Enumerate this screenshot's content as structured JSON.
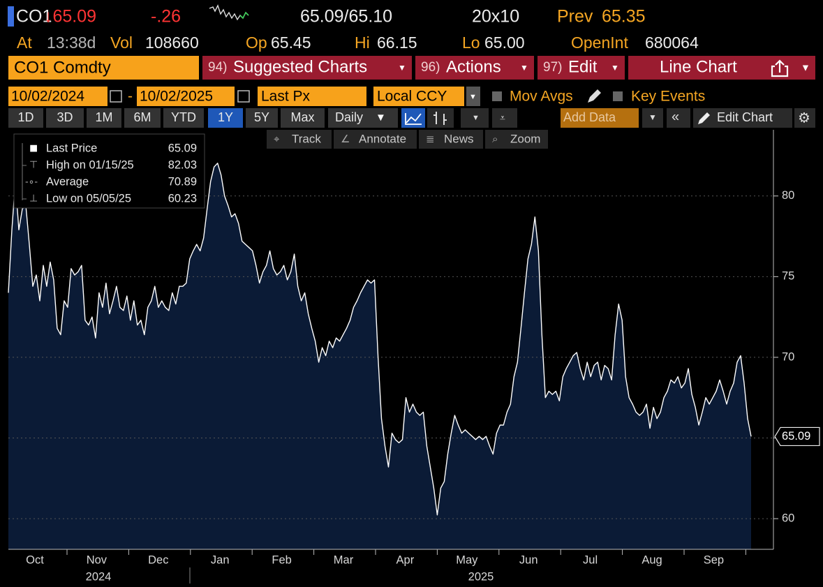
{
  "header": {
    "ticker": "CO1",
    "last": "↓65.09",
    "change": "-.26",
    "bid_ask": "65.09/65.10",
    "size": "20x10",
    "prev_label": "Prev",
    "prev": "65.35"
  },
  "quote": {
    "at_label": "At",
    "time": "13:38d",
    "vol_label": "Vol",
    "vol": "108660",
    "op_label": "Op",
    "op": "65.45",
    "hi_label": "Hi",
    "hi": "66.15",
    "lo_label": "Lo",
    "lo": "65.00",
    "oi_label": "OpenInt",
    "oi": "680064"
  },
  "tabs": {
    "security": "CO1 Comdty",
    "menus": [
      {
        "num": "94)",
        "label": "Suggested Charts"
      },
      {
        "num": "96)",
        "label": "Actions"
      },
      {
        "num": "97)",
        "label": "Edit"
      }
    ],
    "chart_type": "Line Chart"
  },
  "controls": {
    "start": "10/02/2024",
    "separator": "-",
    "end": "10/02/2025",
    "field": "Last Px",
    "currency": "Local CCY",
    "options": [
      "Mov Avgs",
      "Key Events"
    ]
  },
  "periods": [
    "1D",
    "3D",
    "1M",
    "6M",
    "YTD",
    "1Y",
    "5Y",
    "Max"
  ],
  "frequency": "Daily",
  "add_data": "Add Data",
  "edit_chart": "Edit Chart",
  "tools": [
    "Track",
    "Annotate",
    "News",
    "Zoom"
  ],
  "chart_data": {
    "type": "area",
    "color": "#ffffff",
    "fill": "#0b1b36",
    "legend": [
      {
        "label": "Last Price",
        "value": 65.09
      },
      {
        "label": "High on 01/15/25",
        "value": 82.03
      },
      {
        "label": "Average",
        "value": 70.89
      },
      {
        "label": "Low on 05/05/25",
        "value": 60.23
      }
    ],
    "months": [
      "Oct",
      "Nov",
      "Dec",
      "Jan",
      "Feb",
      "Mar",
      "Apr",
      "May",
      "Jun",
      "Jul",
      "Aug",
      "Sep"
    ],
    "years": [
      "2024",
      "2025"
    ],
    "ylim": [
      58.1,
      84.1
    ],
    "yticks": [
      60,
      65,
      70,
      75,
      80
    ],
    "grid": true,
    "values": [
      74.0,
      77.9,
      80.9,
      77.9,
      79.2,
      79.4,
      77.0,
      74.4,
      75.1,
      73.5,
      75.7,
      74.4,
      75.9,
      74.8,
      71.8,
      71.4,
      73.5,
      73.1,
      75.5,
      75.1,
      75.3,
      75.7,
      72.3,
      72.0,
      72.5,
      71.2,
      74.0,
      73.1,
      74.6,
      72.7,
      73.5,
      74.4,
      73.1,
      72.9,
      73.8,
      72.3,
      73.5,
      72.0,
      72.3,
      71.4,
      73.1,
      73.5,
      74.4,
      73.1,
      73.5,
      73.1,
      72.9,
      74.0,
      73.3,
      74.4,
      74.4,
      74.6,
      76.1,
      76.6,
      77.0,
      76.6,
      77.4,
      79.2,
      80.9,
      81.8,
      82.03,
      81.3,
      80.0,
      79.4,
      78.7,
      78.9,
      78.3,
      77.2,
      77.0,
      76.8,
      76.6,
      75.7,
      74.6,
      75.3,
      75.7,
      76.6,
      75.5,
      75.1,
      75.3,
      75.7,
      74.8,
      75.3,
      76.4,
      74.4,
      73.5,
      74.0,
      72.7,
      71.8,
      71.0,
      69.7,
      70.6,
      70.1,
      71.0,
      70.6,
      71.2,
      71.0,
      71.4,
      71.8,
      72.3,
      73.1,
      73.5,
      74.0,
      74.4,
      74.8,
      74.6,
      74.8,
      70.1,
      66.2,
      64.5,
      63.2,
      65.3,
      64.9,
      64.7,
      64.9,
      67.5,
      66.6,
      67.1,
      66.6,
      66.4,
      66.6,
      64.5,
      63.2,
      61.9,
      60.23,
      61.9,
      62.3,
      64.0,
      65.3,
      66.4,
      65.8,
      65.3,
      65.5,
      65.3,
      65.1,
      64.9,
      65.1,
      64.9,
      65.1,
      64.5,
      64.0,
      65.3,
      65.8,
      65.8,
      66.6,
      67.1,
      68.8,
      69.7,
      71.8,
      74.0,
      76.1,
      77.0,
      78.7,
      76.6,
      71.4,
      67.5,
      67.9,
      67.7,
      67.9,
      67.3,
      68.8,
      69.3,
      69.7,
      70.1,
      70.3,
      69.3,
      68.6,
      69.7,
      68.8,
      69.5,
      69.7,
      68.6,
      69.5,
      69.3,
      68.6,
      71.4,
      73.3,
      72.3,
      68.8,
      67.5,
      67.1,
      66.6,
      66.4,
      66.6,
      67.1,
      65.6,
      66.9,
      66.2,
      66.6,
      67.5,
      67.9,
      68.6,
      68.4,
      68.8,
      68.1,
      68.4,
      69.3,
      67.7,
      66.9,
      65.8,
      66.6,
      67.5,
      67.1,
      67.5,
      67.9,
      68.6,
      67.9,
      67.1,
      67.9,
      68.4,
      69.7,
      70.1,
      68.4,
      66.2,
      65.09
    ]
  }
}
